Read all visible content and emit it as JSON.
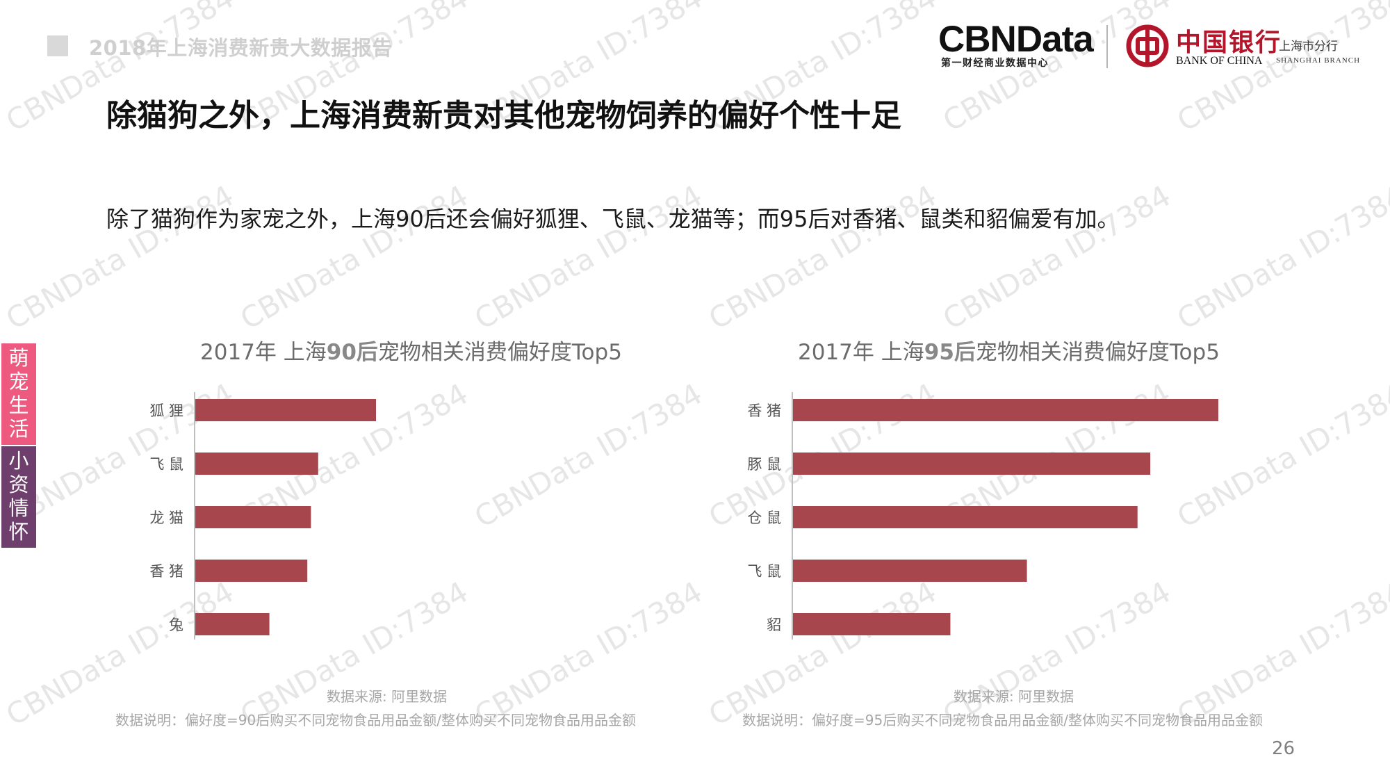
{
  "header": {
    "report_title": "2018年上海消费新贵大数据报告",
    "cbn_logo": "CBNData",
    "cbn_logo_sub": "第一财经商业数据中心",
    "boc_logo_cn": "中国银行",
    "boc_logo_en": "BANK OF CHINA",
    "boc_branch_cn": "上海市分行",
    "boc_branch_en": "SHANGHAI BRANCH"
  },
  "main": {
    "title": "除猫狗之外，上海消费新贵对其他宠物饲养的偏好个性十足",
    "subtitle": "除了猫狗作为家宠之外，上海90后还会偏好狐狸、飞鼠、龙猫等；而95后对香猪、鼠类和貂偏爱有加。"
  },
  "side_tab": {
    "top_label": "萌宠生活",
    "bottom_label": "小资情怀"
  },
  "colors": {
    "bar": "#a8464e",
    "side_top": "#ee5a7f",
    "side_bottom": "#6e3f6c",
    "watermark": "#e6e6e6"
  },
  "watermark_text": "CBNData ID:7384",
  "chart_data": [
    {
      "type": "bar",
      "orientation": "horizontal",
      "title_prefix": "2017年  上海",
      "title_bold": "90后",
      "title_suffix": "宠物相关消费偏好度Top5",
      "categories": [
        "狐 狸",
        "飞 鼠",
        "龙 猫",
        "香 猪",
        "兔"
      ],
      "values": [
        1.0,
        0.68,
        0.64,
        0.62,
        0.41
      ],
      "value_scale": "relative to top category (no axis printed)",
      "xlim": [
        0,
        1.0
      ],
      "grid": false,
      "source": "数据来源: 阿里数据",
      "note": "数据说明：偏好度=90后购买不同宠物食品用品金额/整体购买不同宠物食品用品金额"
    },
    {
      "type": "bar",
      "orientation": "horizontal",
      "title_prefix": "2017年  上海",
      "title_bold": "95后",
      "title_suffix": "宠物相关消费偏好度Top5",
      "categories": [
        "香 猪",
        "豚 鼠",
        "仓 鼠",
        "飞 鼠",
        "貂"
      ],
      "values": [
        1.0,
        0.84,
        0.81,
        0.55,
        0.37
      ],
      "value_scale": "relative to top category (no axis printed)",
      "xlim": [
        0,
        1.0
      ],
      "grid": false,
      "source": "数据来源: 阿里数据",
      "note": "数据说明：偏好度=95后购买不同宠物食品用品金额/整体购买不同宠物食品用品金额"
    }
  ],
  "page_number": "26"
}
